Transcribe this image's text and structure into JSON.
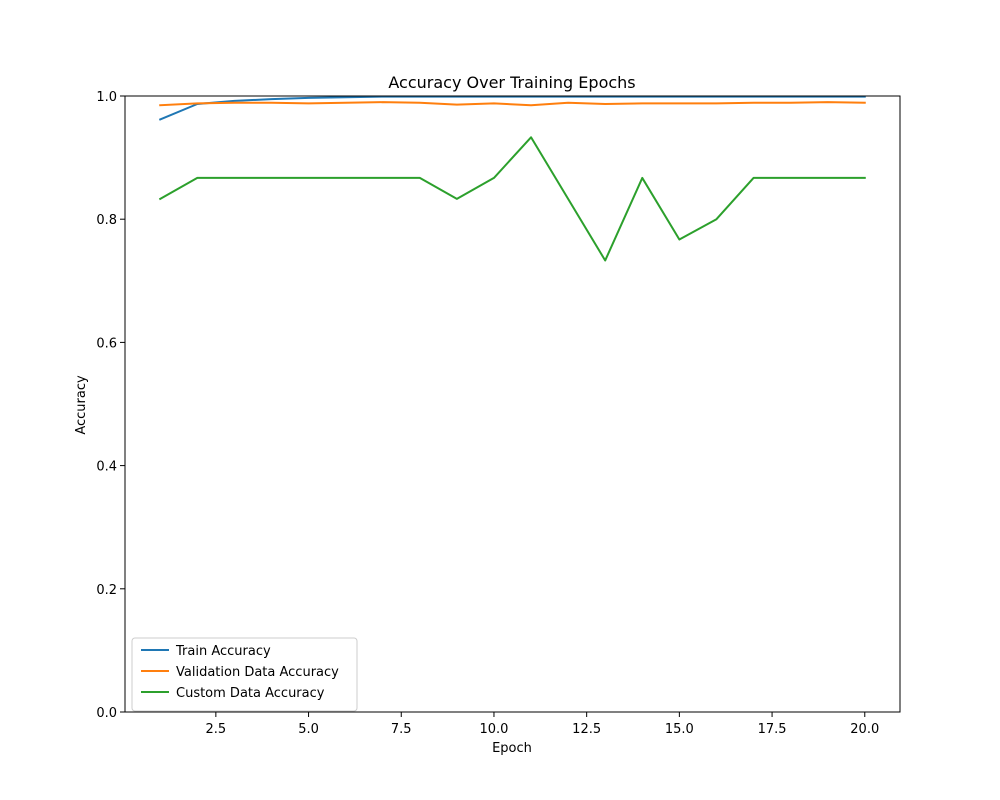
{
  "chart_data": {
    "type": "line",
    "title": "Accuracy Over Training Epochs",
    "xlabel": "Epoch",
    "ylabel": "Accuracy",
    "xlim": [
      0.05,
      20.95
    ],
    "ylim": [
      0,
      1
    ],
    "xticks": [
      2.5,
      5,
      7.5,
      10,
      12.5,
      15,
      17.5,
      20
    ],
    "xtick_labels": [
      "2.5",
      "5.0",
      "7.5",
      "10.0",
      "12.5",
      "15.0",
      "17.5",
      "20.0"
    ],
    "yticks": [
      0,
      0.2,
      0.4,
      0.6,
      0.8,
      1
    ],
    "ytick_labels": [
      "0.0",
      "0.2",
      "0.4",
      "0.6",
      "0.8",
      "1.0"
    ],
    "grid": false,
    "legend_position": "lower-left",
    "x": [
      1,
      2,
      3,
      4,
      5,
      6,
      7,
      8,
      9,
      10,
      11,
      12,
      13,
      14,
      15,
      16,
      17,
      18,
      19,
      20
    ],
    "series": [
      {
        "name": "Train Accuracy",
        "color": "#1f77b4",
        "values": [
          0.962,
          0.987,
          0.992,
          0.995,
          0.997,
          0.998,
          0.999,
          0.999,
          0.999,
          0.999,
          0.999,
          0.999,
          0.999,
          0.999,
          0.999,
          0.999,
          0.999,
          0.999,
          0.999,
          0.999
        ]
      },
      {
        "name": "Validation Data Accuracy",
        "color": "#ff7f0e",
        "values": [
          0.985,
          0.988,
          0.989,
          0.989,
          0.988,
          0.989,
          0.99,
          0.989,
          0.986,
          0.988,
          0.985,
          0.989,
          0.987,
          0.988,
          0.988,
          0.988,
          0.989,
          0.989,
          0.99,
          0.989
        ]
      },
      {
        "name": "Custom Data Accuracy",
        "color": "#2ca02c",
        "values": [
          0.833,
          0.867,
          0.867,
          0.867,
          0.867,
          0.867,
          0.867,
          0.867,
          0.833,
          0.867,
          0.933,
          0.833,
          0.733,
          0.867,
          0.767,
          0.8,
          0.867,
          0.867,
          0.867,
          0.867
        ]
      }
    ]
  }
}
